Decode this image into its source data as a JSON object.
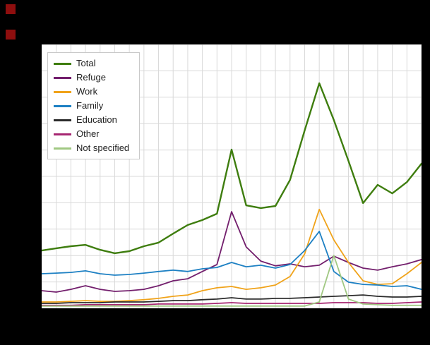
{
  "page": {
    "background_color": "#000000",
    "plot_background_color": "#ffffff"
  },
  "markers": {
    "color": "#8e0e0e",
    "description": "two small dark-red squares in top-left corner"
  },
  "chart_data": {
    "type": "line",
    "title": "",
    "xlabel": "",
    "ylabel": "",
    "x_note": "27 evenly spaced points (yearly); axis tick labels are not visible in the screenshot",
    "y_note": "values estimated in relative units 0-100 of plot height (no visible axis labels)",
    "x": [
      0,
      1,
      2,
      3,
      4,
      5,
      6,
      7,
      8,
      9,
      10,
      11,
      12,
      13,
      14,
      15,
      16,
      17,
      18,
      19,
      20,
      21,
      22,
      23,
      24,
      25,
      26
    ],
    "ylim": [
      0,
      110
    ],
    "grid": {
      "enabled": true,
      "vertical_lines": 27,
      "horizontal_lines": 11,
      "color": "#d9d9d9"
    },
    "legend_position": "top-left inside plot",
    "series": [
      {
        "name": "Total",
        "color": "#3e7d0e",
        "values": [
          25.6,
          26.6,
          27.5,
          28.1,
          25.9,
          24.4,
          25.3,
          27.5,
          29.1,
          33.1,
          36.9,
          39.1,
          41.9,
          70.3,
          45.6,
          44.4,
          45.3,
          56.9,
          78.8,
          99.7,
          83.4,
          65.3,
          46.6,
          54.7,
          50.9,
          55.9,
          64.1
        ]
      },
      {
        "name": "Refuge",
        "color": "#731f6d",
        "values": [
          7.8,
          7.2,
          8.4,
          10.0,
          8.4,
          7.5,
          7.8,
          8.4,
          10.0,
          12.2,
          13.1,
          16.3,
          19.4,
          42.8,
          27.2,
          20.9,
          18.8,
          19.7,
          18.4,
          19.1,
          23.1,
          20.3,
          17.8,
          16.9,
          18.4,
          19.7,
          21.6
        ]
      },
      {
        "name": "Work",
        "color": "#f0a31a",
        "values": [
          2.8,
          2.8,
          3.1,
          3.4,
          3.1,
          3.1,
          3.4,
          3.8,
          4.4,
          5.3,
          5.9,
          7.8,
          9.1,
          9.7,
          8.4,
          9.1,
          10.3,
          14.1,
          24.1,
          43.8,
          30.3,
          20.3,
          12.2,
          10.6,
          10.9,
          15.3,
          20.3
        ]
      },
      {
        "name": "Family",
        "color": "#1d80c3",
        "values": [
          15.3,
          15.6,
          15.9,
          16.6,
          15.3,
          14.7,
          15.0,
          15.6,
          16.3,
          16.9,
          16.3,
          17.5,
          18.1,
          20.3,
          18.4,
          19.1,
          17.8,
          19.4,
          25.6,
          34.1,
          16.3,
          11.6,
          10.6,
          10.3,
          9.7,
          10.0,
          8.4
        ]
      },
      {
        "name": "Education",
        "color": "#2b2b2b",
        "values": [
          2.2,
          2.2,
          2.5,
          2.5,
          2.5,
          2.8,
          2.8,
          2.8,
          3.1,
          3.4,
          3.4,
          3.8,
          4.1,
          4.7,
          4.1,
          4.1,
          4.4,
          4.4,
          4.7,
          5.0,
          5.3,
          5.6,
          5.9,
          5.3,
          5.0,
          5.0,
          5.3
        ]
      },
      {
        "name": "Other",
        "color": "#a62671",
        "values": [
          1.3,
          1.3,
          1.3,
          1.6,
          1.6,
          1.6,
          1.6,
          1.6,
          1.9,
          1.9,
          1.9,
          1.9,
          2.2,
          2.5,
          2.2,
          2.2,
          2.2,
          2.2,
          2.2,
          2.2,
          2.5,
          2.5,
          2.5,
          2.2,
          2.2,
          2.5,
          2.8
        ]
      },
      {
        "name": "Not specified",
        "color": "#a0c882",
        "values": [
          1.0,
          1.0,
          1.0,
          1.0,
          1.0,
          1.0,
          1.0,
          1.0,
          1.0,
          1.0,
          1.0,
          1.0,
          1.0,
          1.0,
          1.0,
          1.0,
          1.0,
          1.0,
          1.0,
          2.8,
          23.4,
          4.1,
          1.9,
          1.6,
          1.3,
          1.3,
          1.3
        ]
      }
    ]
  }
}
